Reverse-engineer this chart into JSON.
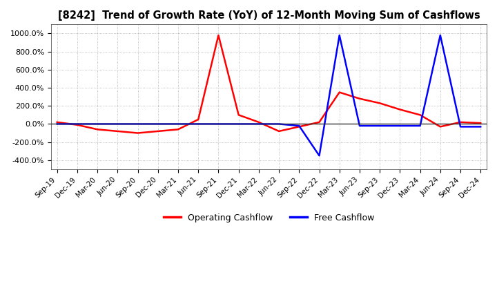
{
  "title": "[8242]  Trend of Growth Rate (YoY) of 12-Month Moving Sum of Cashflows",
  "ylim": [
    -500,
    1100
  ],
  "yticks": [
    -400,
    -200,
    0,
    200,
    400,
    600,
    800,
    1000
  ],
  "background_color": "#ffffff",
  "grid_color": "#aaaaaa",
  "legend": [
    "Operating Cashflow",
    "Free Cashflow"
  ],
  "line_colors": [
    "red",
    "blue"
  ],
  "x_labels": [
    "Sep-19",
    "Dec-19",
    "Mar-20",
    "Jun-20",
    "Sep-20",
    "Dec-20",
    "Mar-21",
    "Jun-21",
    "Sep-21",
    "Dec-21",
    "Mar-22",
    "Jun-22",
    "Sep-22",
    "Dec-22",
    "Mar-23",
    "Jun-23",
    "Sep-23",
    "Dec-23",
    "Mar-24",
    "Jun-24",
    "Sep-24",
    "Dec-24"
  ],
  "operating_cf": [
    20,
    -10,
    -60,
    -80,
    -100,
    -80,
    -60,
    50,
    980,
    100,
    20,
    -80,
    -30,
    20,
    350,
    280,
    230,
    160,
    100,
    -30,
    20,
    10
  ],
  "free_cf": [
    0,
    0,
    0,
    0,
    0,
    0,
    0,
    0,
    0,
    0,
    0,
    0,
    -20,
    -350,
    980,
    -20,
    -20,
    -20,
    -20,
    980,
    -30,
    -30
  ]
}
